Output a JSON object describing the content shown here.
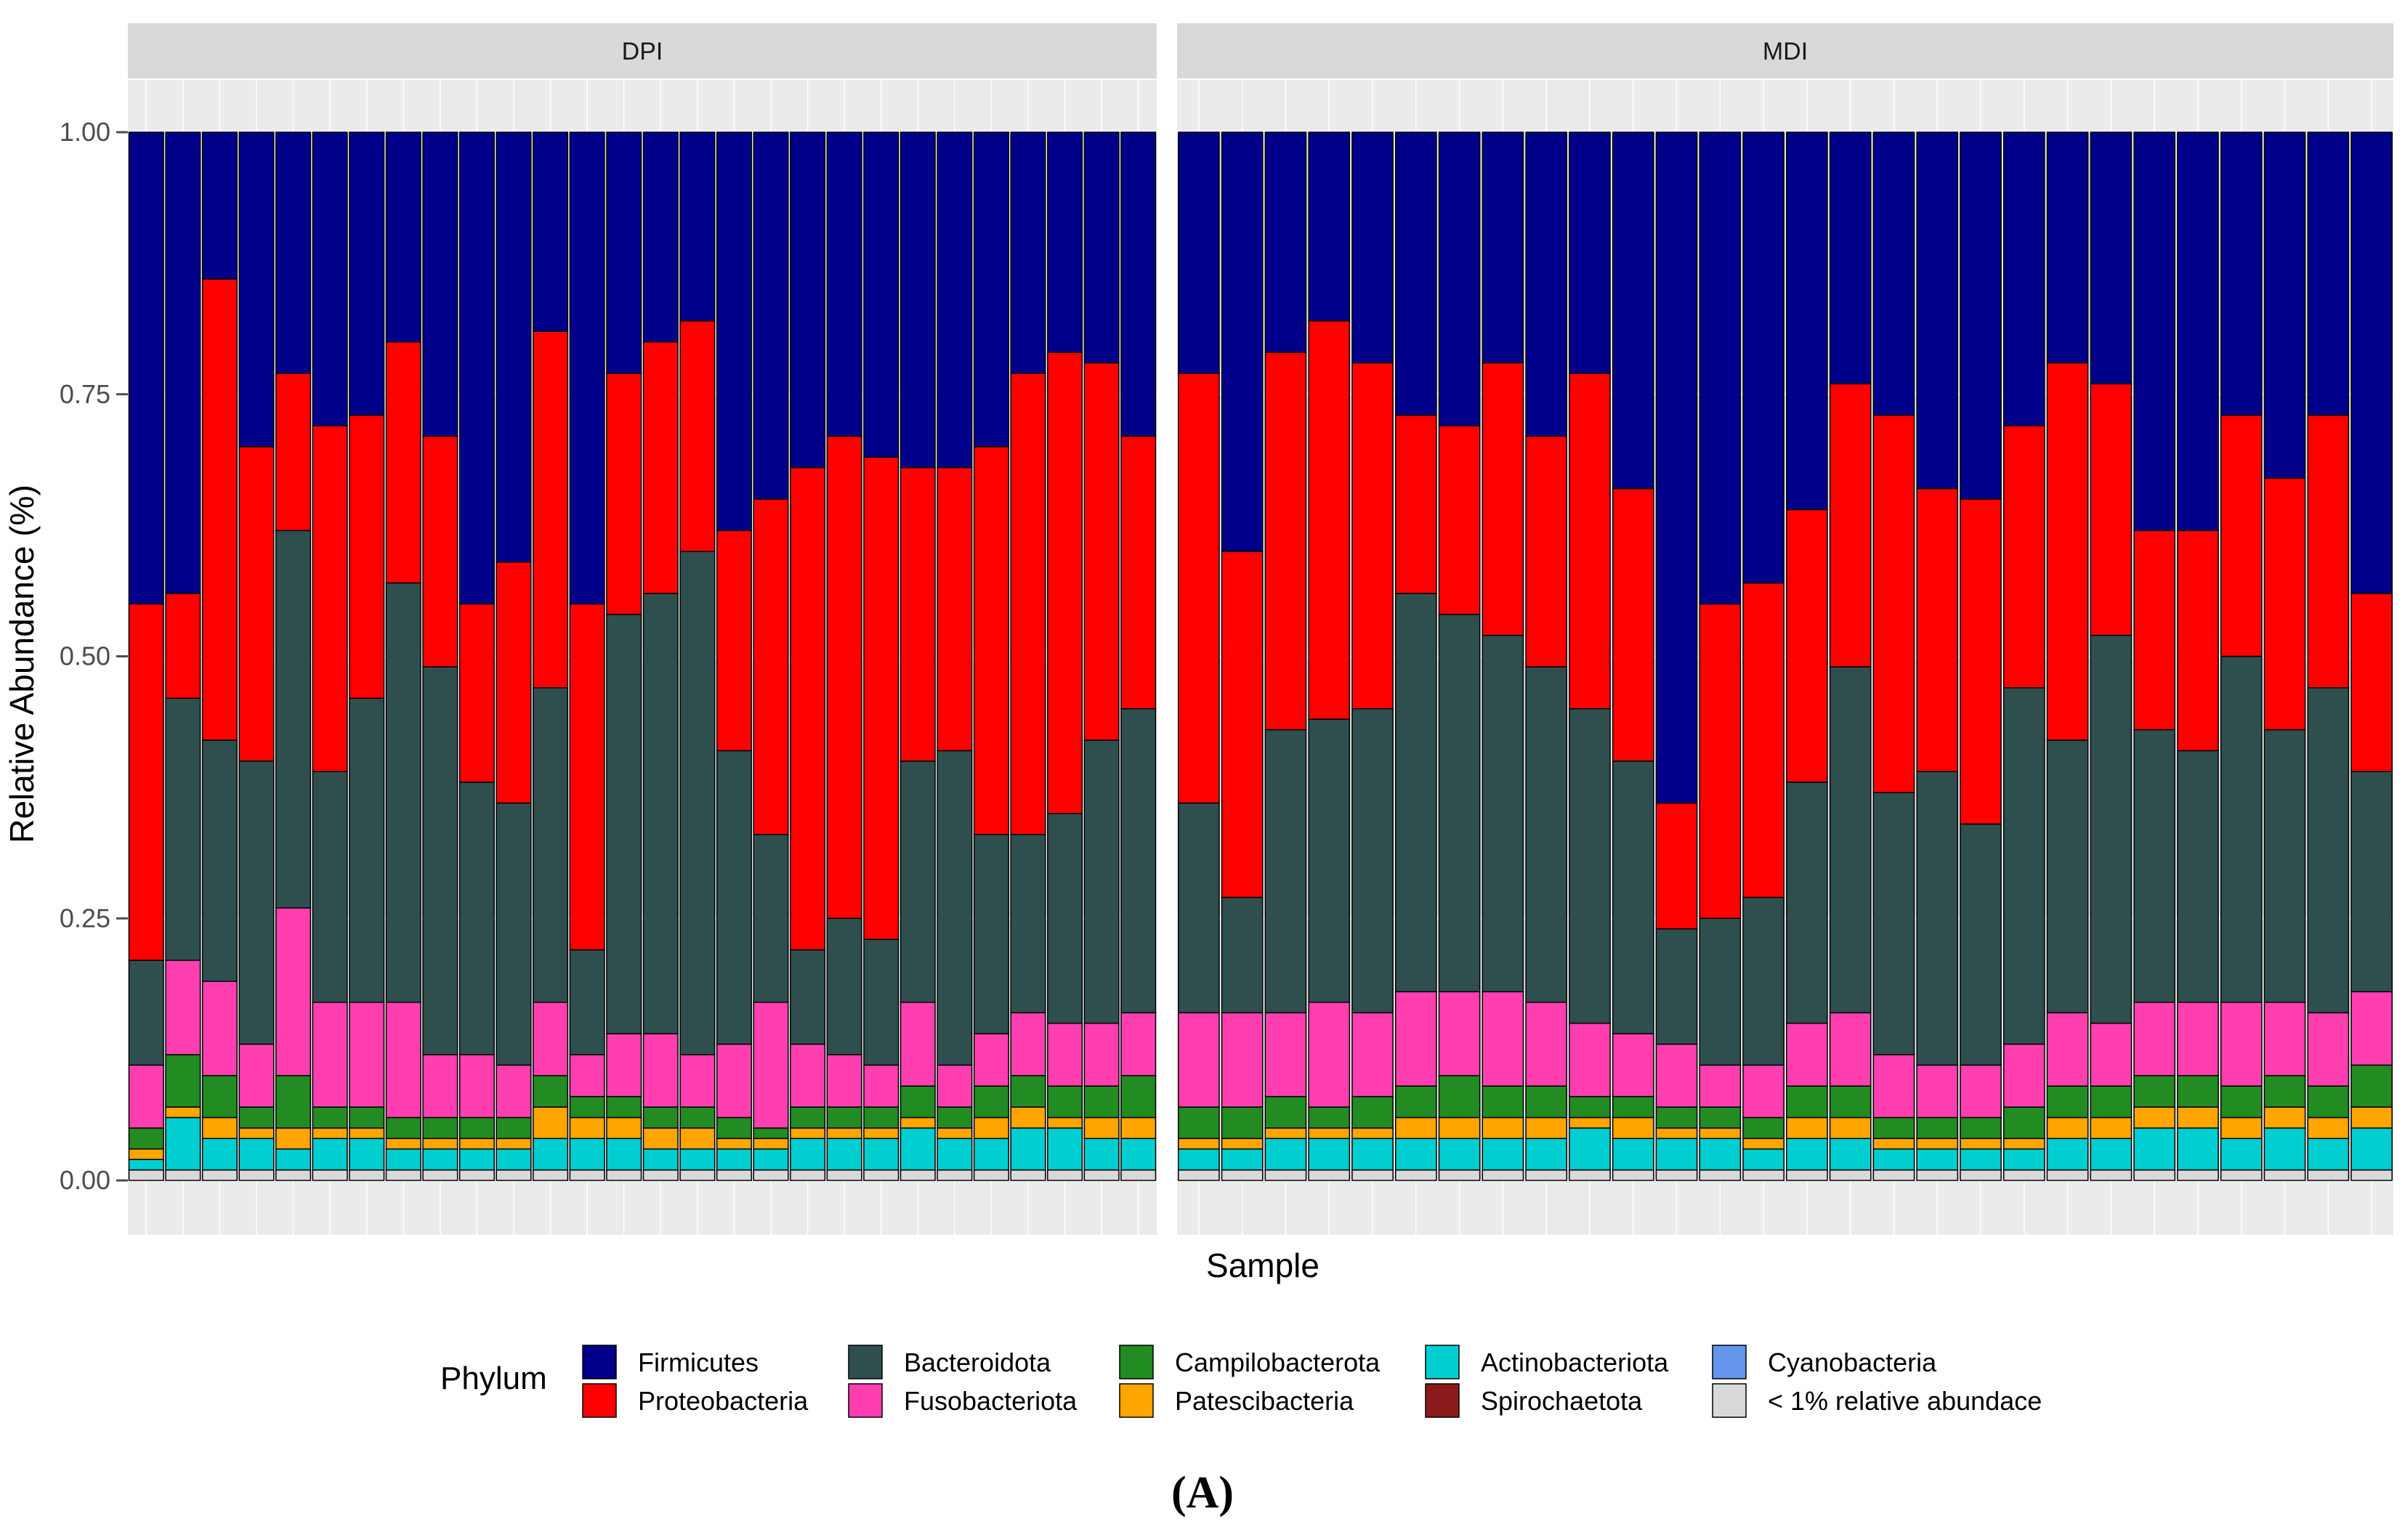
{
  "figure_label": "(A)",
  "chart_data": {
    "type": "bar",
    "stacked": true,
    "xlabel": "Sample",
    "ylabel": "Relative Abundance (%)",
    "ylim": [
      0,
      1
    ],
    "yticks": [
      "0.00",
      "0.25",
      "0.50",
      "0.75",
      "1.00"
    ],
    "facets": [
      "DPI",
      "MDI"
    ],
    "legend_title": "Phylum",
    "legend_position": "bottom",
    "grid": true,
    "categories": [
      "Firmicutes",
      "Proteobacteria",
      "Bacteroidota",
      "Fusobacteriota",
      "Campilobacterota",
      "Patescibacteria",
      "Actinobacteriota",
      "Spirochaetota",
      "Cyanobacteria",
      "< 1% relative abundace"
    ],
    "colors": {
      "Firmicutes": "#00008b",
      "Proteobacteria": "#ff0000",
      "Bacteroidota": "#2f4f4f",
      "Fusobacteriota": "#ff3eb0",
      "Campilobacterota": "#228b22",
      "Patescibacteria": "#ffa500",
      "Actinobacteriota": "#00ced1",
      "Spirochaetota": "#8b1a1a",
      "Cyanobacteria": "#6495ed",
      "< 1% relative abundace": "#d9d9d9"
    },
    "stack_order": [
      "< 1% relative abundace",
      "Actinobacteriota",
      "Patescibacteria",
      "Campilobacterota",
      "Fusobacteriota",
      "Bacteroidota",
      "Proteobacteria",
      "Firmicutes"
    ],
    "series": [
      {
        "facet": "DPI",
        "samples": [
          {
            "other": 0.01,
            "actino": 0.01,
            "pates": 0.01,
            "campylo": 0.02,
            "fuso": 0.06,
            "bact": 0.1,
            "proteo": 0.34
          },
          {
            "other": 0.01,
            "actino": 0.05,
            "pates": 0.01,
            "campylo": 0.05,
            "fuso": 0.09,
            "bact": 0.25,
            "proteo": 0.1
          },
          {
            "other": 0.01,
            "actino": 0.03,
            "pates": 0.02,
            "campylo": 0.04,
            "fuso": 0.09,
            "bact": 0.23,
            "proteo": 0.44
          },
          {
            "other": 0.01,
            "actino": 0.03,
            "pates": 0.01,
            "campylo": 0.02,
            "fuso": 0.06,
            "bact": 0.27,
            "proteo": 0.3
          },
          {
            "other": 0.01,
            "actino": 0.02,
            "pates": 0.02,
            "campylo": 0.05,
            "fuso": 0.16,
            "bact": 0.36,
            "proteo": 0.15
          },
          {
            "other": 0.01,
            "actino": 0.03,
            "pates": 0.01,
            "campylo": 0.02,
            "fuso": 0.1,
            "bact": 0.22,
            "proteo": 0.33
          },
          {
            "other": 0.01,
            "actino": 0.03,
            "pates": 0.01,
            "campylo": 0.02,
            "fuso": 0.1,
            "bact": 0.29,
            "proteo": 0.27
          },
          {
            "other": 0.01,
            "actino": 0.02,
            "pates": 0.01,
            "campylo": 0.02,
            "fuso": 0.11,
            "bact": 0.4,
            "proteo": 0.23
          },
          {
            "other": 0.01,
            "actino": 0.02,
            "pates": 0.01,
            "campylo": 0.02,
            "fuso": 0.06,
            "bact": 0.37,
            "proteo": 0.22
          },
          {
            "other": 0.01,
            "actino": 0.02,
            "pates": 0.01,
            "campylo": 0.02,
            "fuso": 0.06,
            "bact": 0.26,
            "proteo": 0.17
          },
          {
            "other": 0.01,
            "actino": 0.02,
            "pates": 0.01,
            "campylo": 0.02,
            "fuso": 0.05,
            "bact": 0.25,
            "proteo": 0.23
          },
          {
            "other": 0.01,
            "actino": 0.03,
            "pates": 0.03,
            "campylo": 0.03,
            "fuso": 0.07,
            "bact": 0.3,
            "proteo": 0.34
          },
          {
            "other": 0.01,
            "actino": 0.03,
            "pates": 0.02,
            "campylo": 0.02,
            "fuso": 0.04,
            "bact": 0.1,
            "proteo": 0.33
          },
          {
            "other": 0.01,
            "actino": 0.03,
            "pates": 0.02,
            "campylo": 0.02,
            "fuso": 0.06,
            "bact": 0.4,
            "proteo": 0.23
          },
          {
            "other": 0.01,
            "actino": 0.02,
            "pates": 0.02,
            "campylo": 0.02,
            "fuso": 0.07,
            "bact": 0.42,
            "proteo": 0.24
          },
          {
            "other": 0.01,
            "actino": 0.02,
            "pates": 0.02,
            "campylo": 0.02,
            "fuso": 0.05,
            "bact": 0.48,
            "proteo": 0.22
          },
          {
            "other": 0.01,
            "actino": 0.02,
            "pates": 0.01,
            "campylo": 0.02,
            "fuso": 0.07,
            "bact": 0.28,
            "proteo": 0.21
          },
          {
            "other": 0.01,
            "actino": 0.02,
            "pates": 0.01,
            "campylo": 0.01,
            "fuso": 0.12,
            "bact": 0.16,
            "proteo": 0.32
          },
          {
            "other": 0.01,
            "actino": 0.03,
            "pates": 0.01,
            "campylo": 0.02,
            "fuso": 0.06,
            "bact": 0.09,
            "proteo": 0.46
          },
          {
            "other": 0.01,
            "actino": 0.03,
            "pates": 0.01,
            "campylo": 0.02,
            "fuso": 0.05,
            "bact": 0.13,
            "proteo": 0.46
          },
          {
            "other": 0.01,
            "actino": 0.03,
            "pates": 0.01,
            "campylo": 0.02,
            "fuso": 0.04,
            "bact": 0.12,
            "proteo": 0.46
          },
          {
            "other": 0.01,
            "actino": 0.04,
            "pates": 0.01,
            "campylo": 0.03,
            "fuso": 0.08,
            "bact": 0.23,
            "proteo": 0.28
          },
          {
            "other": 0.01,
            "actino": 0.03,
            "pates": 0.01,
            "campylo": 0.02,
            "fuso": 0.04,
            "bact": 0.3,
            "proteo": 0.27
          },
          {
            "other": 0.01,
            "actino": 0.03,
            "pates": 0.02,
            "campylo": 0.03,
            "fuso": 0.05,
            "bact": 0.19,
            "proteo": 0.37
          },
          {
            "other": 0.01,
            "actino": 0.04,
            "pates": 0.02,
            "campylo": 0.03,
            "fuso": 0.06,
            "bact": 0.17,
            "proteo": 0.44
          },
          {
            "other": 0.01,
            "actino": 0.04,
            "pates": 0.01,
            "campylo": 0.03,
            "fuso": 0.06,
            "bact": 0.2,
            "proteo": 0.44
          },
          {
            "other": 0.01,
            "actino": 0.03,
            "pates": 0.02,
            "campylo": 0.03,
            "fuso": 0.06,
            "bact": 0.27,
            "proteo": 0.36
          },
          {
            "other": 0.01,
            "actino": 0.03,
            "pates": 0.02,
            "campylo": 0.04,
            "fuso": 0.06,
            "bact": 0.29,
            "proteo": 0.26
          }
        ]
      },
      {
        "facet": "MDI",
        "samples": [
          {
            "other": 0.01,
            "actino": 0.02,
            "pates": 0.01,
            "campylo": 0.03,
            "fuso": 0.09,
            "bact": 0.2,
            "proteo": 0.41
          },
          {
            "other": 0.01,
            "actino": 0.02,
            "pates": 0.01,
            "campylo": 0.03,
            "fuso": 0.09,
            "bact": 0.11,
            "proteo": 0.33
          },
          {
            "other": 0.01,
            "actino": 0.03,
            "pates": 0.01,
            "campylo": 0.03,
            "fuso": 0.08,
            "bact": 0.27,
            "proteo": 0.36
          },
          {
            "other": 0.01,
            "actino": 0.03,
            "pates": 0.01,
            "campylo": 0.02,
            "fuso": 0.1,
            "bact": 0.27,
            "proteo": 0.38
          },
          {
            "other": 0.01,
            "actino": 0.03,
            "pates": 0.01,
            "campylo": 0.03,
            "fuso": 0.08,
            "bact": 0.29,
            "proteo": 0.33
          },
          {
            "other": 0.01,
            "actino": 0.03,
            "pates": 0.02,
            "campylo": 0.03,
            "fuso": 0.09,
            "bact": 0.38,
            "proteo": 0.17
          },
          {
            "other": 0.01,
            "actino": 0.03,
            "pates": 0.02,
            "campylo": 0.04,
            "fuso": 0.08,
            "bact": 0.36,
            "proteo": 0.18
          },
          {
            "other": 0.01,
            "actino": 0.03,
            "pates": 0.02,
            "campylo": 0.03,
            "fuso": 0.09,
            "bact": 0.34,
            "proteo": 0.26
          },
          {
            "other": 0.01,
            "actino": 0.03,
            "pates": 0.02,
            "campylo": 0.03,
            "fuso": 0.08,
            "bact": 0.32,
            "proteo": 0.22
          },
          {
            "other": 0.01,
            "actino": 0.04,
            "pates": 0.01,
            "campylo": 0.02,
            "fuso": 0.07,
            "bact": 0.3,
            "proteo": 0.32
          },
          {
            "other": 0.01,
            "actino": 0.03,
            "pates": 0.02,
            "campylo": 0.02,
            "fuso": 0.06,
            "bact": 0.26,
            "proteo": 0.26
          },
          {
            "other": 0.01,
            "actino": 0.03,
            "pates": 0.01,
            "campylo": 0.02,
            "fuso": 0.06,
            "bact": 0.11,
            "proteo": 0.12
          },
          {
            "other": 0.01,
            "actino": 0.03,
            "pates": 0.01,
            "campylo": 0.02,
            "fuso": 0.04,
            "bact": 0.14,
            "proteo": 0.3
          },
          {
            "other": 0.01,
            "actino": 0.02,
            "pates": 0.01,
            "campylo": 0.02,
            "fuso": 0.05,
            "bact": 0.16,
            "proteo": 0.3
          },
          {
            "other": 0.01,
            "actino": 0.03,
            "pates": 0.02,
            "campylo": 0.03,
            "fuso": 0.06,
            "bact": 0.23,
            "proteo": 0.26
          },
          {
            "other": 0.01,
            "actino": 0.03,
            "pates": 0.02,
            "campylo": 0.03,
            "fuso": 0.07,
            "bact": 0.33,
            "proteo": 0.27
          },
          {
            "other": 0.01,
            "actino": 0.02,
            "pates": 0.01,
            "campylo": 0.02,
            "fuso": 0.06,
            "bact": 0.25,
            "proteo": 0.36
          },
          {
            "other": 0.01,
            "actino": 0.02,
            "pates": 0.01,
            "campylo": 0.02,
            "fuso": 0.05,
            "bact": 0.28,
            "proteo": 0.27
          },
          {
            "other": 0.01,
            "actino": 0.02,
            "pates": 0.01,
            "campylo": 0.02,
            "fuso": 0.05,
            "bact": 0.23,
            "proteo": 0.31
          },
          {
            "other": 0.01,
            "actino": 0.02,
            "pates": 0.01,
            "campylo": 0.03,
            "fuso": 0.06,
            "bact": 0.34,
            "proteo": 0.25
          },
          {
            "other": 0.01,
            "actino": 0.03,
            "pates": 0.02,
            "campylo": 0.03,
            "fuso": 0.07,
            "bact": 0.26,
            "proteo": 0.36
          },
          {
            "other": 0.01,
            "actino": 0.03,
            "pates": 0.02,
            "campylo": 0.03,
            "fuso": 0.06,
            "bact": 0.37,
            "proteo": 0.24
          },
          {
            "other": 0.01,
            "actino": 0.04,
            "pates": 0.02,
            "campylo": 0.03,
            "fuso": 0.07,
            "bact": 0.26,
            "proteo": 0.19
          },
          {
            "other": 0.01,
            "actino": 0.04,
            "pates": 0.02,
            "campylo": 0.03,
            "fuso": 0.07,
            "bact": 0.24,
            "proteo": 0.21
          },
          {
            "other": 0.01,
            "actino": 0.03,
            "pates": 0.02,
            "campylo": 0.03,
            "fuso": 0.08,
            "bact": 0.33,
            "proteo": 0.23
          },
          {
            "other": 0.01,
            "actino": 0.04,
            "pates": 0.02,
            "campylo": 0.03,
            "fuso": 0.07,
            "bact": 0.26,
            "proteo": 0.24
          },
          {
            "other": 0.01,
            "actino": 0.03,
            "pates": 0.02,
            "campylo": 0.03,
            "fuso": 0.07,
            "bact": 0.31,
            "proteo": 0.26
          },
          {
            "other": 0.01,
            "actino": 0.04,
            "pates": 0.02,
            "campylo": 0.04,
            "fuso": 0.07,
            "bact": 0.21,
            "proteo": 0.17
          }
        ]
      }
    ]
  }
}
